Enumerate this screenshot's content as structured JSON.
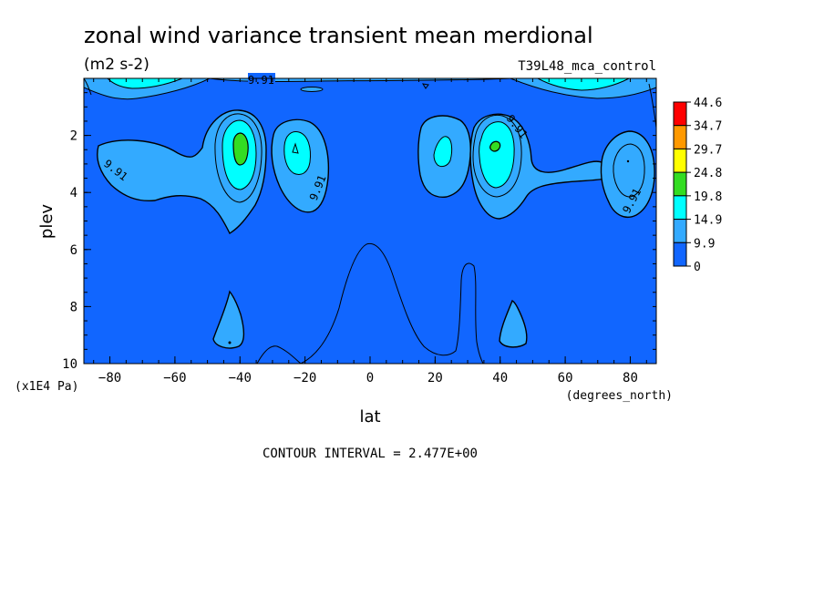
{
  "chart_data": {
    "type": "heatmap",
    "title": "zonal wind variance transient mean merdional",
    "subtitle": "(m2 s-2)",
    "run_label": "T39L48_mca_control",
    "xlabel": "lat",
    "x_units": "(degrees_north)",
    "ylabel": "plev",
    "y_units": "(x1E4 Pa)",
    "xlim": [
      -88,
      88
    ],
    "ylim": [
      0,
      10
    ],
    "y_inverted": true,
    "x_ticks": [
      -80,
      -60,
      -40,
      -20,
      0,
      20,
      40,
      60,
      80
    ],
    "y_ticks": [
      2,
      4,
      6,
      8,
      10
    ],
    "contour_interval_text": "CONTOUR INTERVAL = 2.477E+00",
    "contour_line_label": "9.91",
    "colorbar": {
      "labels": [
        "44.6",
        "34.7",
        "29.7",
        "24.8",
        "19.8",
        "14.9",
        "9.9",
        "0"
      ],
      "colors": [
        "#ff0000",
        "#ff9900",
        "#ffff00",
        "#33dd22",
        "#00ffff",
        "#33aaff",
        "#1166ff"
      ]
    },
    "colors": {
      "band_0_9.9": "#1166ff",
      "band_9.9_14.9": "#33aaff",
      "band_14.9_19.8": "#00ffff",
      "band_19.8_24.8": "#33dd22"
    },
    "regions": [
      {
        "name": "south-lower-lobe",
        "band": "9.9-14.9",
        "lat": [
          -88,
          -30
        ],
        "plev": [
          2.3,
          4.5
        ]
      },
      {
        "name": "south-core-40S",
        "band": "9.9-14.9",
        "lat": [
          -50,
          -32
        ],
        "plev": [
          1.2,
          5.4
        ]
      },
      {
        "name": "south-core-40S-inner",
        "band": "14.9-19.8",
        "lat": [
          -46,
          -35
        ],
        "plev": [
          1.8,
          3.9
        ]
      },
      {
        "name": "south-peak-40S",
        "band": "19.8-24.8",
        "lat": [
          -42,
          -39
        ],
        "plev": [
          2.4,
          3.0
        ]
      },
      {
        "name": "south-core-25S",
        "band": "9.9-14.9",
        "lat": [
          -32,
          -12
        ],
        "plev": [
          1.4,
          4.2
        ]
      },
      {
        "name": "north-core-22N",
        "band": "9.9-14.9",
        "lat": [
          15,
          32
        ],
        "plev": [
          1.3,
          3.8
        ]
      },
      {
        "name": "north-core-40N",
        "band": "9.9-14.9",
        "lat": [
          30,
          50
        ],
        "plev": [
          1.1,
          5.0
        ]
      },
      {
        "name": "north-core-40N-inner",
        "band": "14.9-19.8",
        "lat": [
          35,
          45
        ],
        "plev": [
          1.8,
          3.8
        ]
      },
      {
        "name": "north-peak-40N",
        "band": "19.8-24.8",
        "lat": [
          38,
          41
        ],
        "plev": [
          2.4,
          2.7
        ]
      },
      {
        "name": "north-outer-80N",
        "band": "9.9-14.9",
        "lat": [
          62,
          88
        ],
        "plev": [
          2.2,
          4.6
        ]
      },
      {
        "name": "south-lower-tongue",
        "band": "9.9-14.9",
        "lat": [
          -46,
          -38
        ],
        "plev": [
          7.4,
          9.5
        ]
      },
      {
        "name": "north-lower-tongue",
        "band": "9.9-14.9",
        "lat": [
          36,
          44
        ],
        "plev": [
          7.7,
          9.4
        ]
      },
      {
        "name": "top-jets",
        "band": "9.9-14.9",
        "lat": [
          -88,
          88
        ],
        "plev": [
          0,
          0.5
        ]
      }
    ]
  }
}
